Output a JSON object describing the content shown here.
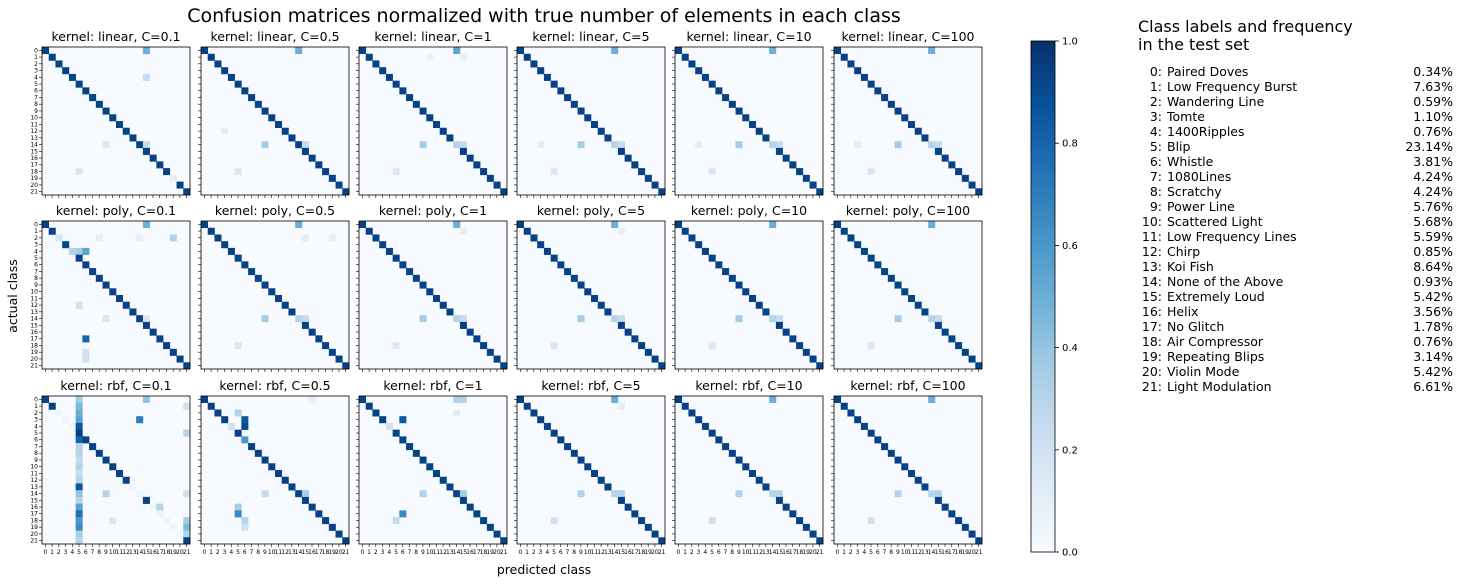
{
  "chart_data": {
    "type": "heatmap",
    "title": "Confusion matrices normalized with true number of elements in each class",
    "xlabel": "predicted class",
    "ylabel": "actual class",
    "colormap": "Blues",
    "colorbar": {
      "min": 0.0,
      "max": 1.0,
      "ticks": [
        "0.0",
        "0.2",
        "0.4",
        "0.6",
        "0.8",
        "1.0"
      ]
    },
    "tick_labels": [
      "0",
      "1",
      "2",
      "3",
      "4",
      "5",
      "6",
      "7",
      "8",
      "9",
      "10",
      "11",
      "12",
      "13",
      "14",
      "15",
      "16",
      "17",
      "18",
      "19",
      "20",
      "21"
    ],
    "grid": false,
    "panels": [
      {
        "title": "kernel: linear, C=0.1",
        "offdiag": [
          [
            0,
            15,
            0.5
          ],
          [
            4,
            15,
            0.25
          ],
          [
            14,
            9,
            0.15
          ],
          [
            14,
            15,
            0.25
          ],
          [
            18,
            5,
            0.15
          ],
          [
            19,
            19,
            0.1
          ],
          [
            2,
            22,
            0.08
          ]
        ],
        "diag_default": 0.93,
        "diag_overrides": {}
      },
      {
        "title": "kernel: linear, C=0.5",
        "offdiag": [
          [
            0,
            14,
            0.5
          ],
          [
            14,
            9,
            0.35
          ],
          [
            14,
            15,
            0.25
          ],
          [
            18,
            5,
            0.15
          ],
          [
            12,
            3,
            0.1
          ]
        ],
        "diag_default": 0.93,
        "diag_overrides": {}
      },
      {
        "title": "kernel: linear, C=1",
        "offdiag": [
          [
            0,
            14,
            0.55
          ],
          [
            14,
            9,
            0.35
          ],
          [
            14,
            15,
            0.25
          ],
          [
            18,
            5,
            0.15
          ],
          [
            1,
            10,
            0.08
          ],
          [
            1,
            15,
            0.08
          ]
        ],
        "diag_default": 0.93,
        "diag_overrides": {
          "14": 0.3
        }
      },
      {
        "title": "kernel: linear, C=5",
        "offdiag": [
          [
            0,
            14,
            0.5
          ],
          [
            14,
            9,
            0.35
          ],
          [
            14,
            15,
            0.25
          ],
          [
            18,
            5,
            0.15
          ],
          [
            14,
            3,
            0.1
          ]
        ],
        "diag_default": 0.93,
        "diag_overrides": {
          "14": 0.3
        }
      },
      {
        "title": "kernel: linear, C=10",
        "offdiag": [
          [
            0,
            14,
            0.5
          ],
          [
            14,
            9,
            0.35
          ],
          [
            14,
            15,
            0.25
          ],
          [
            18,
            5,
            0.15
          ],
          [
            14,
            3,
            0.1
          ]
        ],
        "diag_default": 0.93,
        "diag_overrides": {
          "14": 0.3
        }
      },
      {
        "title": "kernel: linear, C=100",
        "offdiag": [
          [
            0,
            14,
            0.5
          ],
          [
            14,
            9,
            0.35
          ],
          [
            14,
            15,
            0.25
          ],
          [
            18,
            5,
            0.15
          ],
          [
            14,
            3,
            0.1
          ]
        ],
        "diag_default": 0.93,
        "diag_overrides": {
          "14": 0.3
        }
      },
      {
        "title": "kernel: poly, C=0.1",
        "offdiag": [
          [
            0,
            15,
            0.5
          ],
          [
            2,
            2,
            0.15
          ],
          [
            2,
            8,
            0.1
          ],
          [
            2,
            14,
            0.1
          ],
          [
            2,
            19,
            0.3
          ],
          [
            4,
            6,
            0.55
          ],
          [
            4,
            5,
            0.35
          ],
          [
            14,
            9,
            0.15
          ],
          [
            14,
            15,
            0.15
          ],
          [
            17,
            6,
            0.8
          ],
          [
            19,
            6,
            0.2
          ],
          [
            20,
            6,
            0.2
          ],
          [
            12,
            5,
            0.2
          ]
        ],
        "diag_default": 0.93,
        "diag_overrides": {
          "4": 0.3
        }
      },
      {
        "title": "kernel: poly, C=0.5",
        "offdiag": [
          [
            0,
            14,
            0.5
          ],
          [
            14,
            9,
            0.35
          ],
          [
            14,
            15,
            0.25
          ],
          [
            18,
            5,
            0.15
          ],
          [
            2,
            15,
            0.1
          ],
          [
            2,
            19,
            0.1
          ]
        ],
        "diag_default": 0.93,
        "diag_overrides": {
          "14": 0.3
        }
      },
      {
        "title": "kernel: poly, C=1",
        "offdiag": [
          [
            0,
            14,
            0.5
          ],
          [
            14,
            9,
            0.35
          ],
          [
            14,
            15,
            0.25
          ],
          [
            18,
            5,
            0.15
          ],
          [
            1,
            15,
            0.1
          ]
        ],
        "diag_default": 0.93,
        "diag_overrides": {
          "14": 0.3
        }
      },
      {
        "title": "kernel: poly, C=5",
        "offdiag": [
          [
            0,
            14,
            0.5
          ],
          [
            14,
            9,
            0.35
          ],
          [
            14,
            15,
            0.25
          ],
          [
            18,
            5,
            0.15
          ],
          [
            1,
            15,
            0.1
          ]
        ],
        "diag_default": 0.93,
        "diag_overrides": {
          "14": 0.3
        }
      },
      {
        "title": "kernel: poly, C=10",
        "offdiag": [
          [
            0,
            14,
            0.5
          ],
          [
            14,
            9,
            0.35
          ],
          [
            14,
            15,
            0.25
          ],
          [
            18,
            5,
            0.15
          ]
        ],
        "diag_default": 0.93,
        "diag_overrides": {
          "14": 0.3
        }
      },
      {
        "title": "kernel: poly, C=100",
        "offdiag": [
          [
            0,
            14,
            0.5
          ],
          [
            14,
            9,
            0.35
          ],
          [
            14,
            15,
            0.25
          ],
          [
            18,
            5,
            0.15
          ]
        ],
        "diag_default": 0.93,
        "diag_overrides": {
          "14": 0.3
        }
      },
      {
        "title": "kernel: rbf, C=0.1",
        "offdiag": [
          [
            0,
            5,
            0.35
          ],
          [
            0,
            15,
            0.4
          ],
          [
            1,
            5,
            0.45
          ],
          [
            2,
            5,
            0.5
          ],
          [
            3,
            5,
            0.55
          ],
          [
            3,
            14,
            0.7
          ],
          [
            4,
            5,
            0.85
          ],
          [
            6,
            5,
            0.8
          ],
          [
            7,
            5,
            0.3
          ],
          [
            8,
            5,
            0.3
          ],
          [
            9,
            5,
            0.25
          ],
          [
            10,
            5,
            0.3
          ],
          [
            11,
            5,
            0.25
          ],
          [
            12,
            5,
            0.3
          ],
          [
            13,
            5,
            0.85
          ],
          [
            14,
            5,
            0.4
          ],
          [
            14,
            9,
            0.3
          ],
          [
            15,
            5,
            0.3
          ],
          [
            16,
            5,
            0.55
          ],
          [
            17,
            5,
            0.75
          ],
          [
            18,
            5,
            0.6
          ],
          [
            19,
            5,
            0.65
          ],
          [
            20,
            5,
            0.35
          ],
          [
            21,
            5,
            0.3
          ],
          [
            1,
            21,
            0.2
          ],
          [
            5,
            21,
            0.3
          ],
          [
            14,
            21,
            0.2
          ],
          [
            18,
            21,
            0.35
          ],
          [
            19,
            21,
            0.45
          ],
          [
            20,
            21,
            0.3
          ],
          [
            16,
            17,
            0.3
          ],
          [
            18,
            10,
            0.15
          ]
        ],
        "diag_default": 0.93,
        "diag_overrides": {
          "2": 0.05,
          "3": 0.05,
          "4": 0.05,
          "13": 0.05,
          "14": 0.05,
          "16": 0.05,
          "17": 0.05,
          "18": 0.05,
          "19": 0.05,
          "20": 0.05,
          "5": 0.95
        }
      },
      {
        "title": "kernel: rbf, C=0.5",
        "offdiag": [
          [
            2,
            5,
            0.3
          ],
          [
            3,
            6,
            0.85
          ],
          [
            4,
            6,
            0.9
          ],
          [
            14,
            9,
            0.25
          ],
          [
            14,
            15,
            0.35
          ],
          [
            16,
            5,
            0.35
          ],
          [
            17,
            5,
            0.65
          ],
          [
            18,
            6,
            0.3
          ],
          [
            19,
            6,
            0.2
          ],
          [
            0,
            16,
            0.1
          ]
        ],
        "diag_default": 0.93,
        "diag_overrides": {
          "4": 0.2,
          "6": 0.6
        }
      },
      {
        "title": "kernel: rbf, C=1",
        "offdiag": [
          [
            0,
            14,
            0.3
          ],
          [
            0,
            15,
            0.3
          ],
          [
            3,
            6,
            0.85
          ],
          [
            14,
            9,
            0.3
          ],
          [
            14,
            15,
            0.35
          ],
          [
            17,
            6,
            0.65
          ],
          [
            18,
            5,
            0.25
          ],
          [
            2,
            14,
            0.1
          ]
        ],
        "diag_default": 0.93,
        "diag_overrides": {
          "4": 0.2
        }
      },
      {
        "title": "kernel: rbf, C=5",
        "offdiag": [
          [
            0,
            14,
            0.5
          ],
          [
            14,
            9,
            0.3
          ],
          [
            14,
            15,
            0.3
          ],
          [
            18,
            5,
            0.2
          ],
          [
            1,
            15,
            0.1
          ]
        ],
        "diag_default": 0.93,
        "diag_overrides": {
          "14": 0.3
        }
      },
      {
        "title": "kernel: rbf, C=10",
        "offdiag": [
          [
            0,
            14,
            0.5
          ],
          [
            14,
            9,
            0.3
          ],
          [
            14,
            15,
            0.3
          ],
          [
            18,
            5,
            0.2
          ]
        ],
        "diag_default": 0.93,
        "diag_overrides": {
          "14": 0.3
        }
      },
      {
        "title": "kernel: rbf, C=100",
        "offdiag": [
          [
            0,
            14,
            0.5
          ],
          [
            14,
            9,
            0.3
          ],
          [
            14,
            15,
            0.3
          ],
          [
            18,
            5,
            0.2
          ]
        ],
        "diag_default": 0.93,
        "diag_overrides": {
          "14": 0.3
        }
      }
    ]
  },
  "class_labels": {
    "title": "Class labels and frequency\n in the test set",
    "items": [
      {
        "idx": "0:",
        "name": "Paired Doves",
        "freq": "0.34%"
      },
      {
        "idx": "1:",
        "name": "Low Frequency Burst",
        "freq": "7.63%"
      },
      {
        "idx": "2:",
        "name": "Wandering Line",
        "freq": "0.59%"
      },
      {
        "idx": "3:",
        "name": "Tomte",
        "freq": "1.10%"
      },
      {
        "idx": "4:",
        "name": "1400Ripples",
        "freq": "0.76%"
      },
      {
        "idx": "5:",
        "name": "Blip",
        "freq": "23.14%"
      },
      {
        "idx": "6:",
        "name": "Whistle",
        "freq": "3.81%"
      },
      {
        "idx": "7:",
        "name": "1080Lines",
        "freq": "4.24%"
      },
      {
        "idx": "8:",
        "name": "Scratchy",
        "freq": "4.24%"
      },
      {
        "idx": "9:",
        "name": "Power Line",
        "freq": "5.76%"
      },
      {
        "idx": "10:",
        "name": "Scattered Light",
        "freq": "5.68%"
      },
      {
        "idx": "11:",
        "name": "Low Frequency Lines",
        "freq": "5.59%"
      },
      {
        "idx": "12:",
        "name": "Chirp",
        "freq": "0.85%"
      },
      {
        "idx": "13:",
        "name": "Koi Fish",
        "freq": "8.64%"
      },
      {
        "idx": "14:",
        "name": "None of the Above",
        "freq": "0.93%"
      },
      {
        "idx": "15:",
        "name": "Extremely Loud",
        "freq": "5.42%"
      },
      {
        "idx": "16:",
        "name": "Helix",
        "freq": "3.56%"
      },
      {
        "idx": "17:",
        "name": "No Glitch",
        "freq": "1.78%"
      },
      {
        "idx": "18:",
        "name": "Air Compressor",
        "freq": "0.76%"
      },
      {
        "idx": "19:",
        "name": "Repeating Blips",
        "freq": "3.14%"
      },
      {
        "idx": "20:",
        "name": "Violin Mode",
        "freq": "5.42%"
      },
      {
        "idx": "21:",
        "name": "Light Modulation",
        "freq": "6.61%"
      }
    ]
  }
}
